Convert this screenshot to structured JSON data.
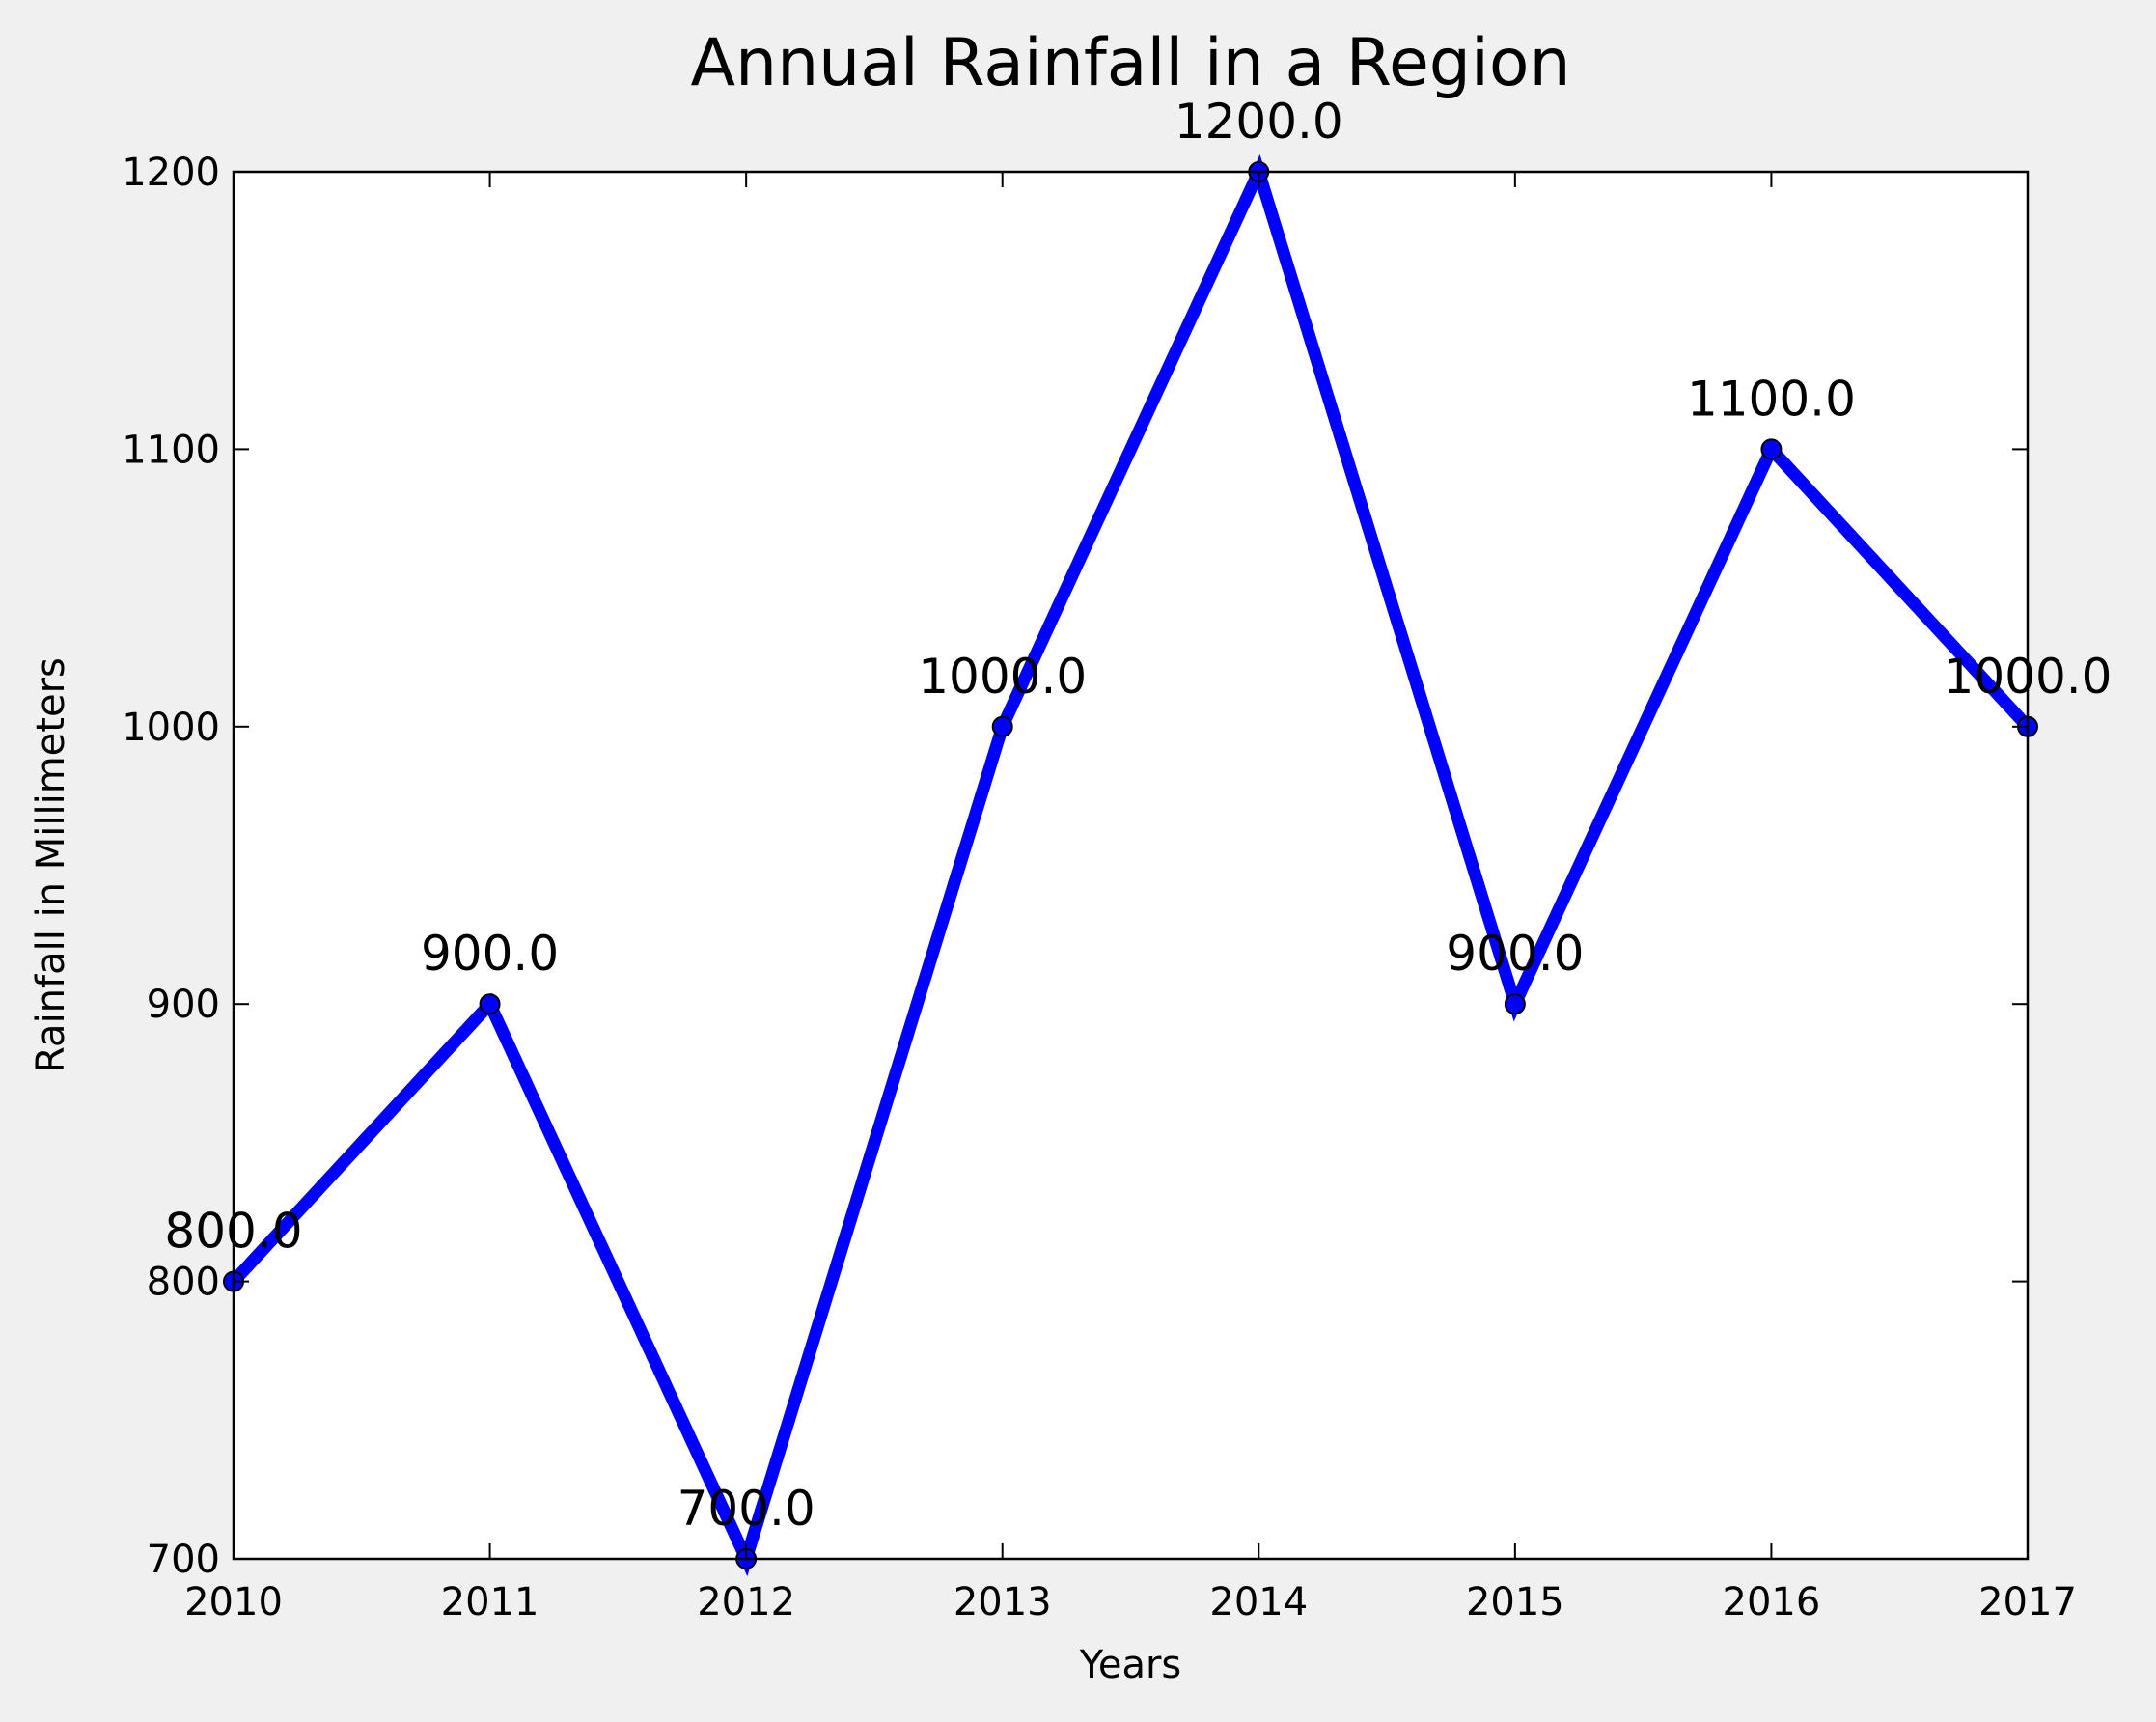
{
  "chart_data": {
    "type": "line",
    "title": "Annual Rainfall in a Region",
    "xlabel": "Years",
    "ylabel": "Rainfall in Millimeters",
    "x": [
      2010,
      2011,
      2012,
      2013,
      2014,
      2015,
      2016,
      2017
    ],
    "xlim": [
      2010,
      2017
    ],
    "ylim": [
      700,
      1200
    ],
    "xticks": [
      "2010",
      "2011",
      "2012",
      "2013",
      "2014",
      "2015",
      "2016",
      "2017"
    ],
    "yticks": [
      "700",
      "800",
      "900",
      "1000",
      "1100",
      "1200"
    ],
    "series": [
      {
        "values": [
          800,
          900,
          700,
          1000,
          1200,
          900,
          1100,
          1000
        ],
        "color": "#0000ff",
        "marker": "circle"
      }
    ],
    "data_labels": [
      "800.0",
      "900.0",
      "700.0",
      "1000.0",
      "1200.0",
      "900.0",
      "1100.0",
      "1000.0"
    ],
    "grid": false,
    "legend": "none",
    "colors": {
      "background": "#f0f0f0",
      "plot_background": "#ffffff",
      "line": "#0000ff",
      "axes": "#000000"
    }
  }
}
